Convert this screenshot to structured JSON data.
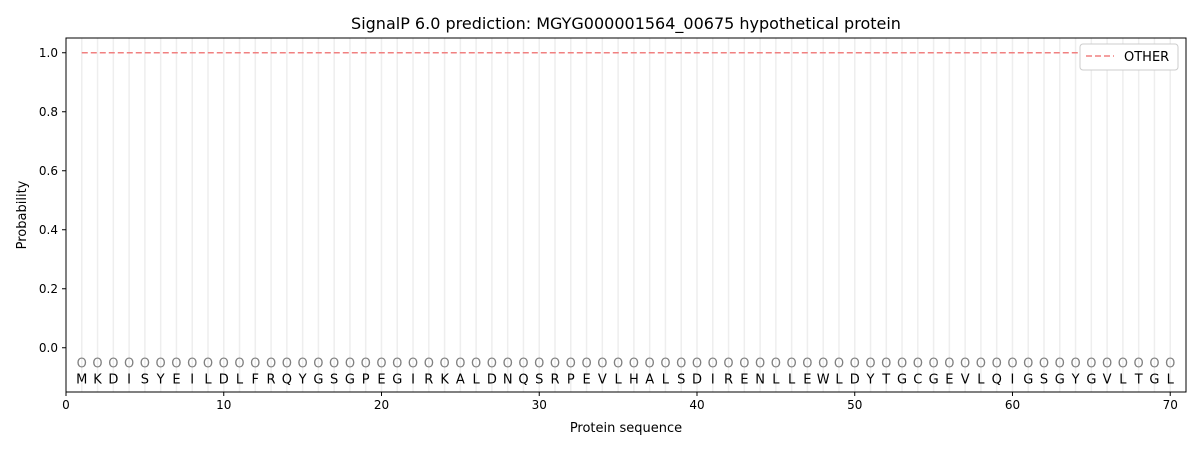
{
  "chart_data": {
    "type": "line",
    "title": "SignalP 6.0 prediction: MGYG000001564_00675 hypothetical protein",
    "xlabel": "Protein sequence",
    "ylabel": "Probability",
    "xlim": [
      0,
      71
    ],
    "ylim": [
      -0.15,
      1.05
    ],
    "xticks": [
      0,
      10,
      20,
      30,
      40,
      50,
      60,
      70
    ],
    "yticks": [
      0.0,
      0.2,
      0.4,
      0.6,
      0.8,
      1.0
    ],
    "grid": "vertical lines at each residue",
    "legend_placement": "top-right",
    "sequence": [
      "M",
      "K",
      "D",
      "I",
      "S",
      "Y",
      "E",
      "I",
      "L",
      "D",
      "L",
      "F",
      "R",
      "Q",
      "Y",
      "G",
      "S",
      "G",
      "P",
      "E",
      "G",
      "I",
      "R",
      "K",
      "A",
      "L",
      "D",
      "N",
      "Q",
      "S",
      "R",
      "P",
      "E",
      "V",
      "L",
      "H",
      "A",
      "L",
      "S",
      "D",
      "I",
      "R",
      "E",
      "N",
      "L",
      "L",
      "E",
      "W",
      "L",
      "D",
      "Y",
      "T",
      "G",
      "C",
      "G",
      "E",
      "V",
      "L",
      "Q",
      "I",
      "G",
      "S",
      "G",
      "Y",
      "G",
      "V",
      "L",
      "T",
      "G",
      "L"
    ],
    "predicted_label": "O",
    "series": [
      {
        "name": "OTHER",
        "color": "#f08080",
        "style": "dashed",
        "x_range": [
          1,
          70
        ],
        "value": 1.0
      }
    ]
  }
}
